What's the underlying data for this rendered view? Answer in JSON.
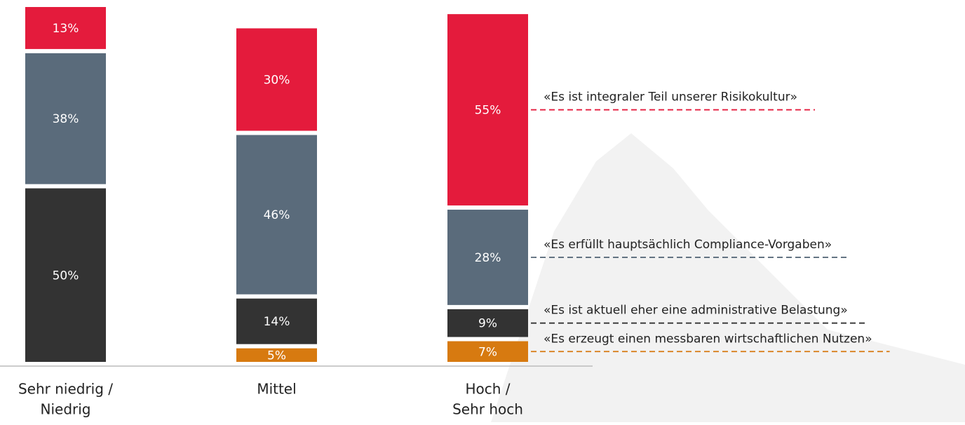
{
  "chart_data": {
    "type": "stacked_bar",
    "categories": [
      [
        "Sehr niedrig /",
        "Niedrig"
      ],
      [
        "Mittel"
      ],
      [
        "Hoch /",
        "Sehr hoch"
      ]
    ],
    "series": [
      {
        "name": "«Es erzeugt einen messbaren wirtschaftlichen Nutzen»",
        "color": "#d77a10",
        "values": [
          null,
          5,
          7
        ],
        "value_labels": [
          null,
          "5%",
          "7%"
        ]
      },
      {
        "name": "«Es ist aktuell eher eine administrative Belastung»",
        "color": "#333333",
        "values": [
          50,
          14,
          9
        ],
        "value_labels": [
          "50%",
          "14%",
          "9%"
        ]
      },
      {
        "name": "«Es erfüllt hauptsächlich Compliance-Vorgaben»",
        "color": "#5a6b7b",
        "values": [
          38,
          46,
          28
        ],
        "value_labels": [
          "38%",
          "46%",
          "28%"
        ]
      },
      {
        "name": "«Es ist integraler Teil unserer Risikokultur»",
        "color": "#e41b3c",
        "values": [
          13,
          30,
          55
        ],
        "value_labels": [
          "13%",
          "30%",
          "55%"
        ]
      }
    ]
  }
}
